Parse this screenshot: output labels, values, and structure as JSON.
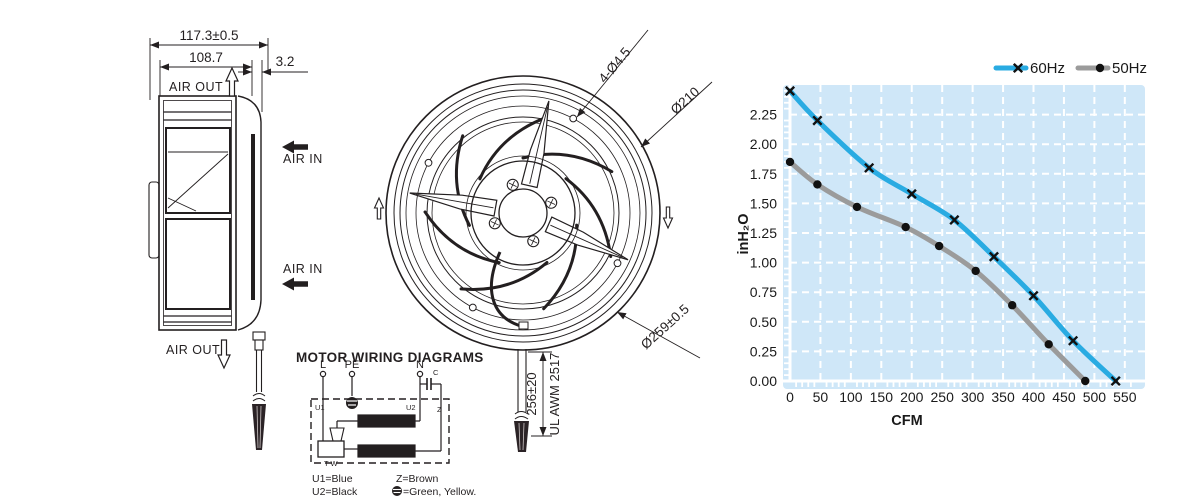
{
  "side_view": {
    "dim_overall": "117.3±0.5",
    "dim_inner": "108.7",
    "dim_flange": "3.2",
    "air_out_top": "AIR OUT",
    "air_in_upper": "AIR IN",
    "air_in_lower": "AIR IN",
    "air_out_bottom": "AIR OUT"
  },
  "front_view": {
    "dim_holes": "4-Ø4.5",
    "dim_inner_circle": "Ø210",
    "dim_outer_circle": "Ø259±0.5",
    "dim_cable_length": "256±20",
    "cable_marking": "UL AWM 2517"
  },
  "wiring": {
    "title": "MOTOR WIRING DIAGRAMS",
    "terminals": {
      "l": "L",
      "pe": "PE",
      "n": "N",
      "c": "C"
    },
    "labels": {
      "u1": "U1",
      "u2": "U2",
      "z": "Z",
      "tw": "T W"
    },
    "legend": {
      "u1": "U1=Blue",
      "u2": "U2=Black",
      "z": "Z=Brown",
      "pe": "=Green, Yellow."
    }
  },
  "chart_data": {
    "type": "line",
    "title": "",
    "xlabel": "CFM",
    "ylabel": "inH₂O",
    "xlim": [
      0,
      570
    ],
    "ylim": [
      0,
      2.5
    ],
    "x_ticks": [
      0,
      50,
      100,
      150,
      200,
      250,
      300,
      350,
      400,
      450,
      500,
      550
    ],
    "y_ticks": [
      0,
      0.25,
      0.5,
      0.75,
      1,
      1.25,
      1.5,
      1.75,
      2,
      2.25
    ],
    "grid": true,
    "grid_style": "dashed-white",
    "plot_bg": "#cfe7f8",
    "grid_color": "#ffffff",
    "legend_position": "top-right",
    "series": [
      {
        "name": "60Hz",
        "color": "#29abe2",
        "marker": "x",
        "points": [
          [
            0,
            2.45
          ],
          [
            45,
            2.2
          ],
          [
            130,
            1.8
          ],
          [
            200,
            1.58
          ],
          [
            270,
            1.36
          ],
          [
            335,
            1.05
          ],
          [
            400,
            0.72
          ],
          [
            465,
            0.34
          ],
          [
            535,
            0.0
          ]
        ]
      },
      {
        "name": "50Hz",
        "color": "#9b9b9b",
        "marker": "dot",
        "points": [
          [
            0,
            1.85
          ],
          [
            45,
            1.66
          ],
          [
            110,
            1.47
          ],
          [
            190,
            1.3
          ],
          [
            245,
            1.14
          ],
          [
            305,
            0.93
          ],
          [
            365,
            0.64
          ],
          [
            425,
            0.31
          ],
          [
            485,
            0.0
          ]
        ]
      }
    ]
  }
}
